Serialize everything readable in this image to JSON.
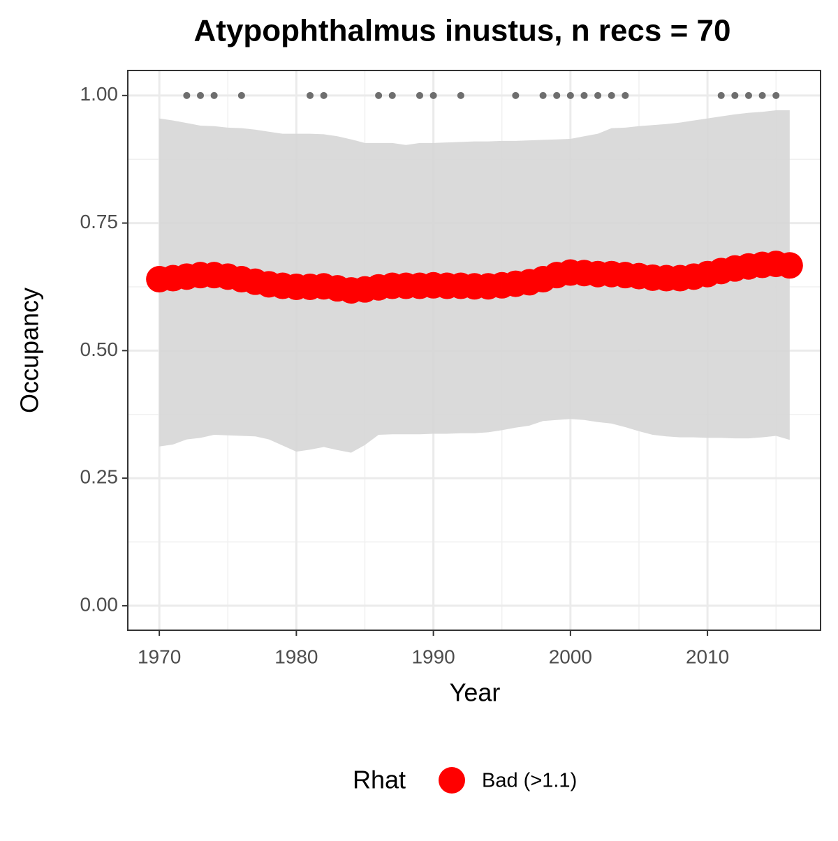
{
  "chart_data": {
    "type": "line",
    "title": "Atypophthalmus inustus, n recs = 70",
    "x_label": "Year",
    "y_label": "Occupancy",
    "x": [
      1970,
      1971,
      1972,
      1973,
      1974,
      1975,
      1976,
      1977,
      1978,
      1979,
      1980,
      1981,
      1982,
      1983,
      1984,
      1985,
      1986,
      1987,
      1988,
      1989,
      1990,
      1991,
      1992,
      1993,
      1994,
      1995,
      1996,
      1997,
      1998,
      1999,
      2000,
      2001,
      2002,
      2003,
      2004,
      2005,
      2006,
      2007,
      2008,
      2009,
      2010,
      2011,
      2012,
      2013,
      2014,
      2015,
      2016
    ],
    "series": [
      {
        "name": "Bad (>1.1)",
        "color": "#ff0000",
        "values": [
          0.64,
          0.642,
          0.645,
          0.648,
          0.648,
          0.645,
          0.64,
          0.635,
          0.63,
          0.627,
          0.625,
          0.625,
          0.626,
          0.622,
          0.618,
          0.62,
          0.624,
          0.627,
          0.627,
          0.627,
          0.628,
          0.627,
          0.627,
          0.626,
          0.626,
          0.628,
          0.631,
          0.634,
          0.64,
          0.648,
          0.653,
          0.652,
          0.65,
          0.65,
          0.648,
          0.646,
          0.643,
          0.642,
          0.642,
          0.645,
          0.65,
          0.656,
          0.661,
          0.665,
          0.668,
          0.67,
          0.667
        ]
      }
    ],
    "band_color": "#d6d6d6",
    "band_upper": [
      0.955,
      0.951,
      0.946,
      0.941,
      0.94,
      0.937,
      0.936,
      0.933,
      0.929,
      0.925,
      0.925,
      0.925,
      0.924,
      0.92,
      0.914,
      0.907,
      0.907,
      0.907,
      0.903,
      0.907,
      0.907,
      0.908,
      0.909,
      0.91,
      0.91,
      0.911,
      0.911,
      0.912,
      0.913,
      0.914,
      0.915,
      0.92,
      0.925,
      0.936,
      0.937,
      0.94,
      0.942,
      0.944,
      0.947,
      0.951,
      0.955,
      0.959,
      0.963,
      0.966,
      0.968,
      0.971,
      0.971
    ],
    "band_lower": [
      0.312,
      0.316,
      0.326,
      0.329,
      0.335,
      0.334,
      0.333,
      0.332,
      0.326,
      0.314,
      0.302,
      0.306,
      0.311,
      0.305,
      0.3,
      0.315,
      0.335,
      0.336,
      0.336,
      0.336,
      0.337,
      0.337,
      0.338,
      0.338,
      0.34,
      0.344,
      0.349,
      0.353,
      0.362,
      0.364,
      0.366,
      0.364,
      0.36,
      0.357,
      0.35,
      0.342,
      0.335,
      0.332,
      0.33,
      0.33,
      0.329,
      0.329,
      0.328,
      0.328,
      0.33,
      0.333,
      0.325
    ],
    "records": {
      "color": "#6e6e6e",
      "x": [
        1972,
        1973,
        1974,
        1976,
        1981,
        1982,
        1986,
        1987,
        1989,
        1990,
        1992,
        1996,
        1998,
        1999,
        2000,
        2001,
        2002,
        2003,
        2004,
        2011,
        2012,
        2013,
        2014,
        2015
      ],
      "values": [
        1,
        1,
        1,
        1,
        1,
        1,
        1,
        1,
        1,
        1,
        1,
        1,
        1,
        1,
        1,
        1,
        1,
        1,
        1,
        1,
        1,
        1,
        1,
        1
      ]
    },
    "xlim": [
      1967.7,
      2018.25
    ],
    "ylim": [
      -0.048,
      1.049
    ],
    "xticks": [
      1970,
      1980,
      1990,
      2000,
      2010
    ],
    "yticks": [
      {
        "value": 0,
        "label": "0.00"
      },
      0.25,
      {
        "value": 0.5,
        "label": "0.50"
      },
      0.75,
      {
        "value": 1,
        "label": "1.00"
      }
    ],
    "minor_xticks": [
      1975,
      1985,
      1995,
      2005,
      2015
    ],
    "minor_yticks": [
      0.125,
      0.375,
      0.625,
      0.875
    ],
    "grid": true,
    "legend_title": "Rhat",
    "legend_position": "bottom"
  }
}
